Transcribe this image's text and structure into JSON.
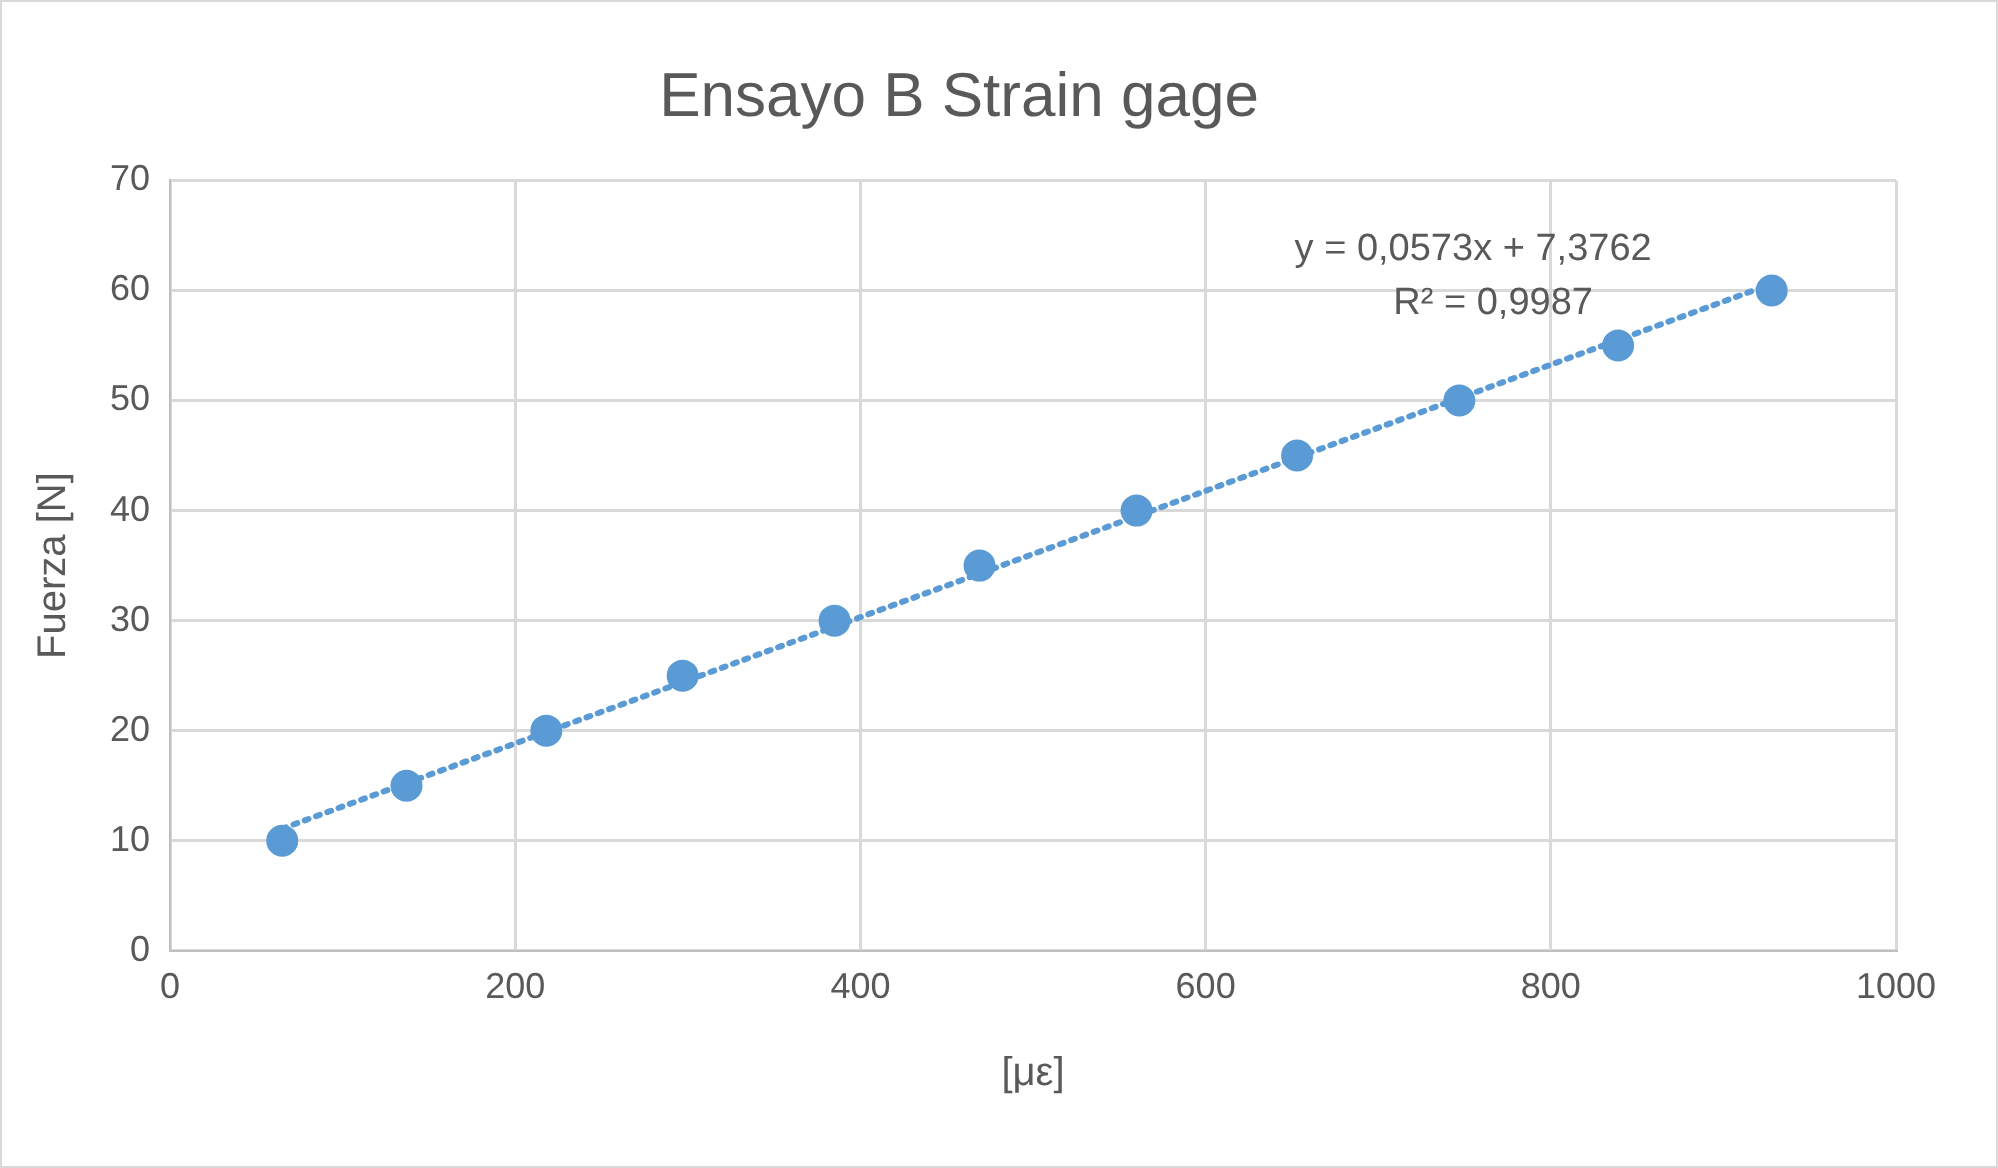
{
  "chart_data": {
    "type": "scatter",
    "title": "Ensayo B Strain gage",
    "xlabel": "[με]",
    "ylabel": "Fuerza [N]",
    "series": [
      {
        "color": "#5b9bd5",
        "x": [
          65,
          137,
          218,
          297,
          385,
          469,
          560,
          653,
          747,
          839,
          928
        ],
        "values": [
          10,
          15,
          20,
          25,
          30,
          35,
          40,
          45,
          50,
          55,
          60
        ],
        "marker": "circle"
      },
      {
        "type": "line",
        "color": "#5b9bd5",
        "x": [
          65,
          928
        ],
        "values": [
          11.1,
          60.6
        ],
        "line_style": "dotted",
        "marker": "none"
      }
    ],
    "xlim": [
      0,
      1000
    ],
    "xticks": [
      0,
      200,
      400,
      600,
      800,
      1000
    ],
    "ylim": [
      0,
      70
    ],
    "yticks": [
      0,
      10,
      20,
      30,
      40,
      50,
      60,
      70
    ],
    "grid": true,
    "legend": false,
    "annotations": [
      "y = 0,0573x + 7,3762",
      "R² = 0,9987"
    ]
  }
}
